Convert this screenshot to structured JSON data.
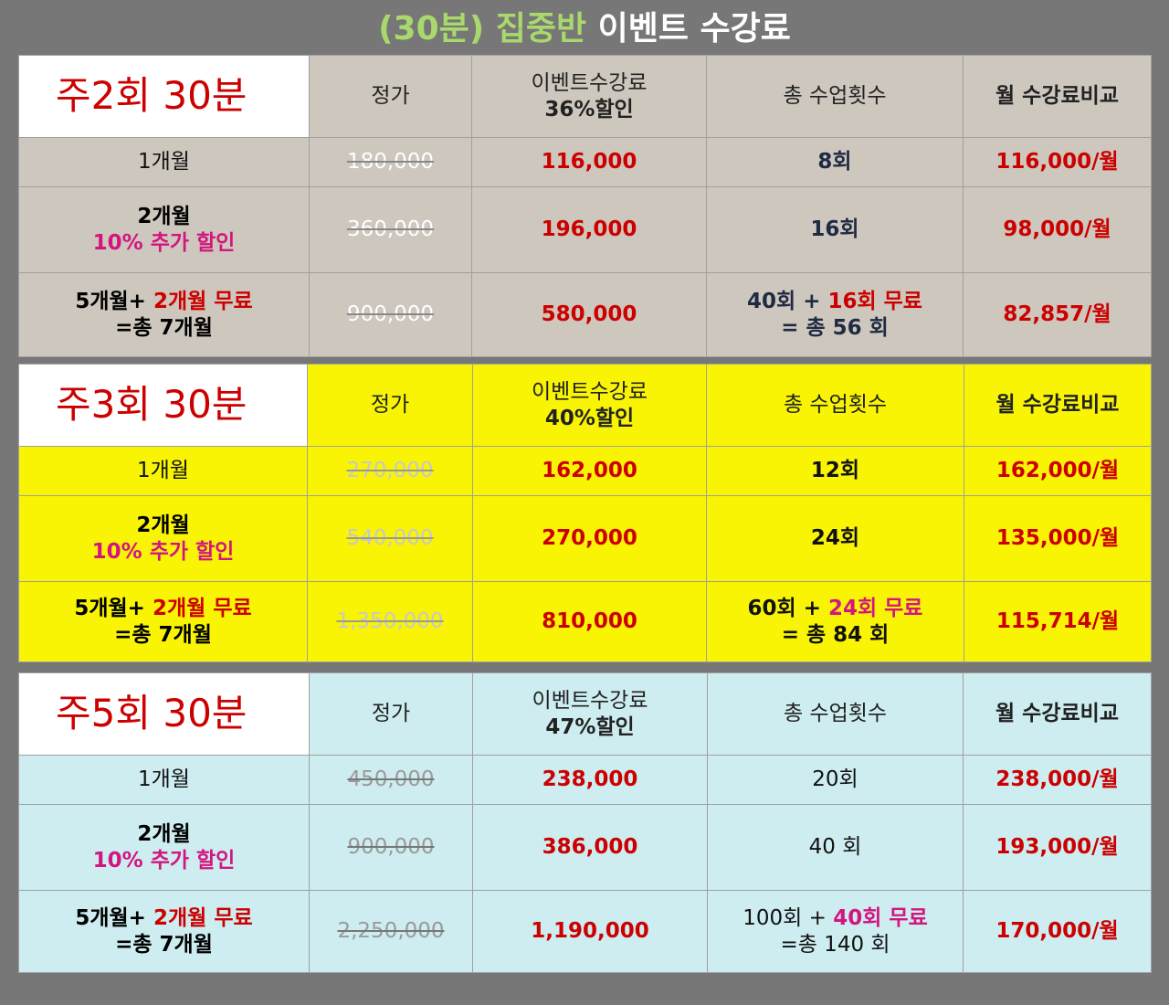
{
  "title": {
    "part1": "(30분) 집중반",
    "part2": "이벤트 수강료"
  },
  "headers": {
    "regular": "정가",
    "event": "이벤트수강료",
    "total": "총 수업횟수",
    "monthly": "월 수강료비교"
  },
  "row_labels": {
    "one_month": "1개월",
    "two_month": "2개월",
    "two_month_note": "10% 추가 할인",
    "five_month": "5개월+",
    "five_month_free": "2개월 무료",
    "five_month_total": "=총 7개월"
  },
  "plans": [
    {
      "title": "주2회 30분",
      "discount": "36%할인",
      "rows": [
        {
          "regular": "180,000",
          "event": "116,000",
          "sessions": "8회",
          "monthly": "116,000/월"
        },
        {
          "regular": "360,000",
          "event": "196,000",
          "sessions": "16회",
          "monthly": "98,000/월"
        },
        {
          "regular": "900,000",
          "event": "580,000",
          "sessions_a": "40회  + ",
          "sessions_b": "16회 무료",
          "sessions_c": "= 총 56 회",
          "monthly": "82,857/월"
        }
      ]
    },
    {
      "title": "주3회 30분",
      "discount": "40%할인",
      "rows": [
        {
          "regular": "270,000",
          "event": "162,000",
          "sessions": "12회",
          "monthly": "162,000/월"
        },
        {
          "regular": "540,000",
          "event": "270,000",
          "sessions": "24회",
          "monthly": "135,000/월"
        },
        {
          "regular": "1,350,000 ",
          "event": "810,000",
          "sessions_a": "60회 +  ",
          "sessions_b": "24회 무료",
          "sessions_c": "= 총 84 회",
          "monthly": "115,714/월"
        }
      ]
    },
    {
      "title": "주5회 30분",
      "discount": "47%할인",
      "rows": [
        {
          "regular": "450,000 ",
          "event": "238,000",
          "sessions": "20회",
          "monthly": "238,000/월"
        },
        {
          "regular": "900,000 ",
          "event": "386,000",
          "sessions": "40 회",
          "monthly": "193,000/월"
        },
        {
          "regular": "2,250,000 ",
          "event": "1,190,000",
          "sessions_a": "100회 + ",
          "sessions_b": "40회 무료",
          "sessions_c": "=총 140 회",
          "monthly": "170,000/월"
        }
      ]
    }
  ],
  "colors": {
    "background": "#777777",
    "title_green": "#a9d86c",
    "accent_red": "#cc0000",
    "accent_pink": "#d4157f",
    "plan1_bg": "#cdc7bd",
    "plan2_bg": "#f8f404",
    "plan3_bg": "#cdedf0"
  }
}
